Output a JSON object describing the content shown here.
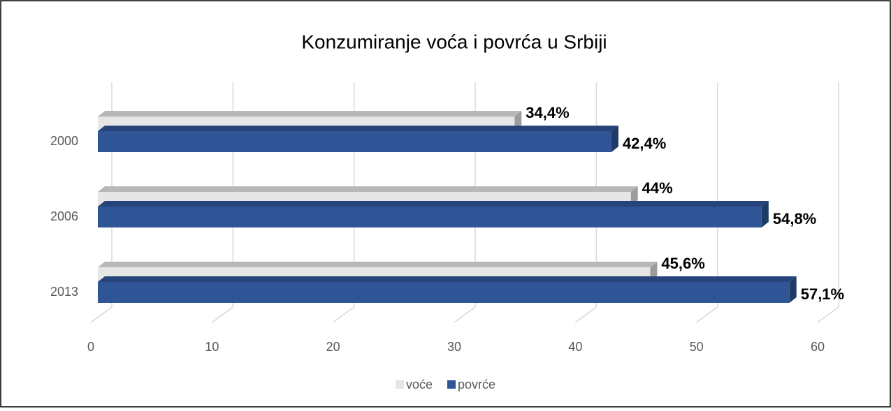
{
  "chart_data": {
    "type": "bar",
    "orientation": "horizontal",
    "title": "Konzumiranje voća i povrća u Srbiji",
    "categories": [
      "2000",
      "2006",
      "2013"
    ],
    "series": [
      {
        "name": "voće",
        "color": "#e6e6e6",
        "values": [
          34.4,
          44,
          45.6
        ],
        "value_labels": [
          "34,4%",
          "44%",
          "45,6%"
        ]
      },
      {
        "name": "povrće",
        "color": "#2f5597",
        "values": [
          42.4,
          54.8,
          57.1
        ],
        "value_labels": [
          "42,4%",
          "54,8%",
          "57,1%"
        ]
      }
    ],
    "xlim": [
      0,
      60
    ],
    "xticks": [
      0,
      10,
      20,
      30,
      40,
      50,
      60
    ],
    "grid": true,
    "legend": "bottom"
  }
}
